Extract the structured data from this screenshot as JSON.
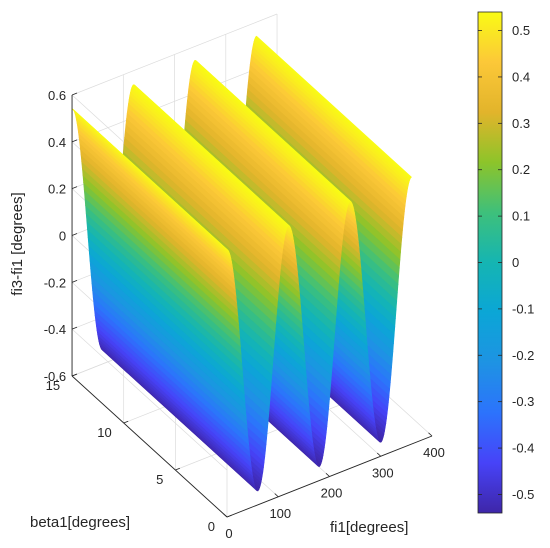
{
  "chart_data": {
    "type": "surface",
    "title": "",
    "xlabel": "fi1[degrees]",
    "ylabel": "beta1[degrees]",
    "zlabel": "fi3-fi1 [degrees]",
    "xlim": [
      0,
      400
    ],
    "ylim": [
      0,
      15
    ],
    "zlim": [
      -0.6,
      0.6
    ],
    "x_ticks": [
      "0",
      "100",
      "200",
      "300",
      "400"
    ],
    "y_ticks": [
      "0",
      "5",
      "10",
      "15"
    ],
    "z_ticks": [
      "-0.6",
      "-0.4",
      "-0.2",
      "0",
      "0.2",
      "0.4",
      "0.6"
    ],
    "surface": {
      "x_range": [
        0,
        360
      ],
      "y_range": [
        0,
        15
      ],
      "z_min": -0.54,
      "z_max": 0.54,
      "periods_in_x": 3,
      "depends_on": "x only"
    },
    "colorbar": {
      "colormap": "parula",
      "limits": [
        -0.54,
        0.54
      ],
      "ticks": [
        "-0.5",
        "-0.4",
        "-0.3",
        "-0.2",
        "-0.1",
        "0",
        "0.1",
        "0.2",
        "0.3",
        "0.4",
        "0.5"
      ]
    },
    "grid": true,
    "box": true
  }
}
